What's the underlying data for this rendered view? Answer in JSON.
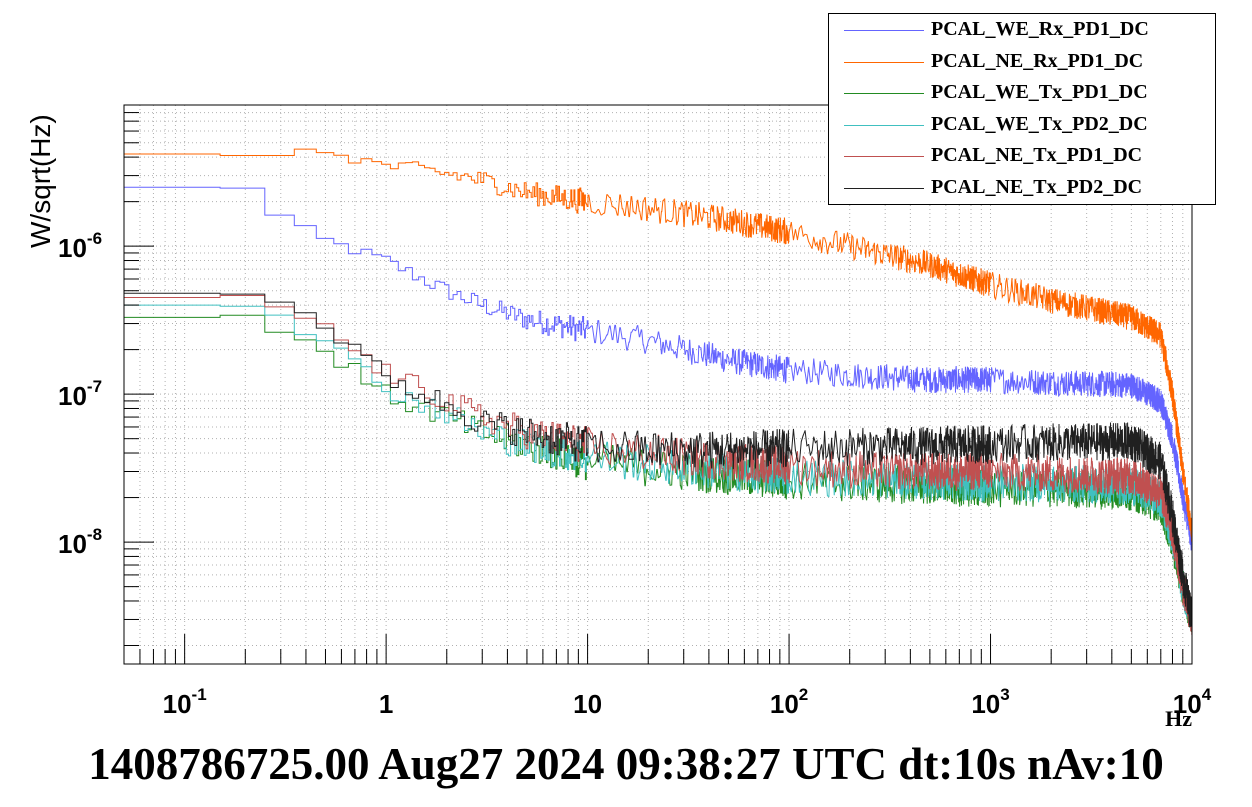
{
  "caption": "1408786725.00 Aug27 2024 09:38:27 UTC dt:10s nAv:10",
  "chart_data": {
    "type": "line",
    "title": "",
    "xlabel": "Hz",
    "ylabel": "W/sqrt(Hz)",
    "x_scale": "log",
    "y_scale": "log",
    "xlim": [
      0.05,
      10000
    ],
    "ylim": [
      1.5e-09,
      9e-06
    ],
    "grid": true,
    "legend_position": "top-right",
    "x_ticks": [
      {
        "value": 0.1,
        "base": "10",
        "exp": "-1"
      },
      {
        "value": 1,
        "base": "1",
        "exp": ""
      },
      {
        "value": 10,
        "base": "10",
        "exp": ""
      },
      {
        "value": 100,
        "base": "10",
        "exp": "2"
      },
      {
        "value": 1000,
        "base": "10",
        "exp": "3"
      },
      {
        "value": 10000,
        "base": "10",
        "exp": "4"
      }
    ],
    "y_ticks": [
      {
        "value": 1e-08,
        "base": "10",
        "exp": "-8"
      },
      {
        "value": 1e-07,
        "base": "10",
        "exp": "-7"
      },
      {
        "value": 1e-06,
        "base": "10",
        "exp": "-6"
      }
    ],
    "series": [
      {
        "name": "PCAL_WE_Rx_PD1_DC",
        "color": "#6464ff",
        "x": [
          0.05,
          0.1,
          0.2,
          0.3,
          0.5,
          1,
          2,
          3,
          5,
          10,
          20,
          50,
          100,
          200,
          500,
          1000,
          2000,
          5000,
          7000,
          8000,
          9000,
          10000
        ],
        "y": [
          2.5e-06,
          2.5e-06,
          2.5e-06,
          1.6e-06,
          1.1e-06,
          8e-07,
          5e-07,
          4e-07,
          3.2e-07,
          2.7e-07,
          2.3e-07,
          1.7e-07,
          1.45e-07,
          1.35e-07,
          1.25e-07,
          1.25e-07,
          1.2e-07,
          1.15e-07,
          9e-08,
          5e-08,
          2e-08,
          1e-08
        ]
      },
      {
        "name": "PCAL_NE_Rx_PD1_DC",
        "color": "#ff6600",
        "x": [
          0.05,
          0.1,
          0.2,
          0.3,
          0.5,
          1,
          2,
          3,
          5,
          10,
          20,
          50,
          100,
          200,
          500,
          1000,
          2000,
          5000,
          7000,
          8000,
          9000,
          10000
        ],
        "y": [
          4.2e-06,
          4.2e-06,
          4.2e-06,
          4.1e-06,
          4.4e-06,
          3.5e-06,
          3.1e-06,
          2.8e-06,
          2.3e-06,
          2e-06,
          1.8e-06,
          1.5e-06,
          1.25e-06,
          1e-06,
          7.5e-07,
          5.5e-07,
          4.3e-07,
          3.3e-07,
          2.5e-07,
          1e-07,
          3e-08,
          1.2e-08
        ]
      },
      {
        "name": "PCAL_WE_Tx_PD1_DC",
        "color": "#228b22",
        "x": [
          0.05,
          0.1,
          0.2,
          0.3,
          0.5,
          1,
          2,
          3,
          5,
          10,
          20,
          50,
          100,
          200,
          500,
          1000,
          2000,
          5000,
          7000,
          8000,
          9000,
          10000
        ],
        "y": [
          3.3e-07,
          3.3e-07,
          3.3e-07,
          2.8e-07,
          2e-07,
          1e-07,
          7e-08,
          5.5e-08,
          4.5e-08,
          3.5e-08,
          3.2e-08,
          2.8e-08,
          2.6e-08,
          2.5e-08,
          2.4e-08,
          2.3e-08,
          2.3e-08,
          2.2e-08,
          1.8e-08,
          1e-08,
          5e-09,
          3e-09
        ]
      },
      {
        "name": "PCAL_WE_Tx_PD2_DC",
        "color": "#40c0c0",
        "x": [
          0.05,
          0.1,
          0.2,
          0.3,
          0.5,
          1,
          2,
          3,
          5,
          10,
          20,
          50,
          100,
          200,
          500,
          1000,
          2000,
          5000,
          7000,
          8000,
          9000,
          10000
        ],
        "y": [
          4e-07,
          4e-07,
          4e-07,
          3.5e-07,
          2.3e-07,
          1.1e-07,
          7.5e-08,
          5.5e-08,
          4.5e-08,
          3.8e-08,
          3.4e-08,
          3e-08,
          2.8e-08,
          2.7e-08,
          2.6e-08,
          2.5e-08,
          2.5e-08,
          2.4e-08,
          2e-08,
          1.1e-08,
          5e-09,
          3e-09
        ]
      },
      {
        "name": "PCAL_NE_Tx_PD1_DC",
        "color": "#c05050",
        "x": [
          0.05,
          0.1,
          0.2,
          0.3,
          0.5,
          1,
          2,
          3,
          5,
          10,
          20,
          50,
          100,
          200,
          500,
          1000,
          2000,
          5000,
          7000,
          8000,
          9000,
          10000
        ],
        "y": [
          4.5e-07,
          4.5e-07,
          4.5e-07,
          4e-07,
          2.8e-07,
          1.4e-07,
          9e-08,
          7e-08,
          5.5e-08,
          4.5e-08,
          4e-08,
          3.5e-08,
          3.3e-08,
          3.1e-08,
          3e-08,
          3e-08,
          2.9e-08,
          2.8e-08,
          2.2e-08,
          1.2e-08,
          5e-09,
          3e-09
        ]
      },
      {
        "name": "PCAL_NE_Tx_PD2_DC",
        "color": "#202020",
        "x": [
          0.05,
          0.1,
          0.2,
          0.3,
          0.5,
          1,
          2,
          3,
          5,
          10,
          20,
          50,
          100,
          200,
          500,
          1000,
          2000,
          5000,
          7000,
          8000,
          9000,
          10000
        ],
        "y": [
          4.8e-07,
          4.8e-07,
          4.8e-07,
          4.2e-07,
          3e-07,
          1.3e-07,
          8.5e-08,
          6.5e-08,
          5.5e-08,
          4.5e-08,
          4.2e-08,
          4.2e-08,
          4.3e-08,
          4.4e-08,
          4.5e-08,
          4.6e-08,
          4.7e-08,
          4.8e-08,
          3.5e-08,
          1.5e-08,
          6e-09,
          3e-09
        ]
      }
    ]
  }
}
